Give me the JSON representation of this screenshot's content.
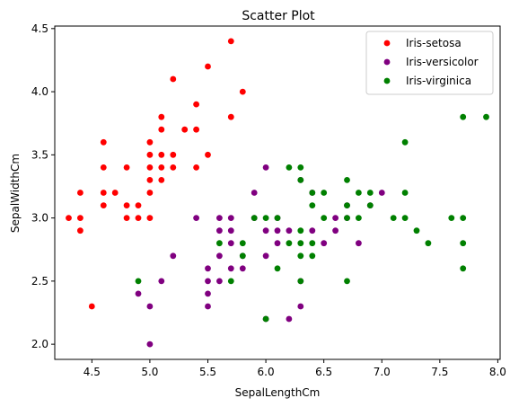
{
  "chart_data": {
    "type": "scatter",
    "title": "Scatter Plot",
    "xlabel": "SepalLengthCm",
    "ylabel": "SepalWidthCm",
    "xlim": [
      4.18,
      8.02
    ],
    "ylim": [
      1.88,
      4.52
    ],
    "xticks": [
      "4.5",
      "5.0",
      "5.5",
      "6.0",
      "6.5",
      "7.0",
      "7.5",
      "8.0"
    ],
    "yticks": [
      "2.0",
      "2.5",
      "3.0",
      "3.5",
      "4.0",
      "4.5"
    ],
    "grid": false,
    "legend_position": "top-right",
    "series": [
      {
        "name": "Iris-setosa",
        "color": "#ff0000",
        "points": [
          [
            4.3,
            3.0
          ],
          [
            4.4,
            3.0
          ],
          [
            4.4,
            2.9
          ],
          [
            4.4,
            3.2
          ],
          [
            4.5,
            2.3
          ],
          [
            4.6,
            3.1
          ],
          [
            4.6,
            3.2
          ],
          [
            4.6,
            3.4
          ],
          [
            4.6,
            3.6
          ],
          [
            4.7,
            3.2
          ],
          [
            4.8,
            3.0
          ],
          [
            4.8,
            3.1
          ],
          [
            4.8,
            3.4
          ],
          [
            4.9,
            3.0
          ],
          [
            4.9,
            3.1
          ],
          [
            5.0,
            3.0
          ],
          [
            5.0,
            3.2
          ],
          [
            5.0,
            3.3
          ],
          [
            5.0,
            3.4
          ],
          [
            5.0,
            3.5
          ],
          [
            5.0,
            3.6
          ],
          [
            5.1,
            3.3
          ],
          [
            5.1,
            3.4
          ],
          [
            5.1,
            3.5
          ],
          [
            5.1,
            3.7
          ],
          [
            5.1,
            3.8
          ],
          [
            5.2,
            3.4
          ],
          [
            5.2,
            3.5
          ],
          [
            5.2,
            4.1
          ],
          [
            5.3,
            3.7
          ],
          [
            5.4,
            3.4
          ],
          [
            5.4,
            3.7
          ],
          [
            5.4,
            3.9
          ],
          [
            5.5,
            3.5
          ],
          [
            5.5,
            4.2
          ],
          [
            5.7,
            3.8
          ],
          [
            5.7,
            4.4
          ],
          [
            5.8,
            4.0
          ]
        ]
      },
      {
        "name": "Iris-versicolor",
        "color": "#800080",
        "points": [
          [
            4.9,
            2.4
          ],
          [
            5.0,
            2.0
          ],
          [
            5.0,
            2.3
          ],
          [
            5.1,
            2.5
          ],
          [
            5.2,
            2.7
          ],
          [
            5.4,
            3.0
          ],
          [
            5.5,
            2.3
          ],
          [
            5.5,
            2.4
          ],
          [
            5.5,
            2.5
          ],
          [
            5.5,
            2.6
          ],
          [
            5.6,
            2.5
          ],
          [
            5.6,
            2.7
          ],
          [
            5.6,
            2.9
          ],
          [
            5.6,
            3.0
          ],
          [
            5.7,
            2.6
          ],
          [
            5.7,
            2.8
          ],
          [
            5.7,
            2.9
          ],
          [
            5.7,
            3.0
          ],
          [
            5.8,
            2.6
          ],
          [
            5.8,
            2.7
          ],
          [
            5.9,
            3.0
          ],
          [
            5.9,
            3.2
          ],
          [
            6.0,
            2.2
          ],
          [
            6.0,
            2.7
          ],
          [
            6.0,
            2.9
          ],
          [
            6.0,
            3.4
          ],
          [
            6.1,
            2.8
          ],
          [
            6.1,
            2.9
          ],
          [
            6.1,
            3.0
          ],
          [
            6.2,
            2.2
          ],
          [
            6.2,
            2.9
          ],
          [
            6.3,
            2.3
          ],
          [
            6.3,
            2.5
          ],
          [
            6.3,
            3.3
          ],
          [
            6.4,
            2.9
          ],
          [
            6.4,
            3.2
          ],
          [
            6.5,
            2.8
          ],
          [
            6.6,
            2.9
          ],
          [
            6.6,
            3.0
          ],
          [
            6.7,
            3.0
          ],
          [
            6.7,
            3.1
          ],
          [
            6.8,
            2.8
          ],
          [
            6.9,
            3.1
          ],
          [
            7.0,
            3.2
          ]
        ]
      },
      {
        "name": "Iris-virginica",
        "color": "#008000",
        "points": [
          [
            4.9,
            2.5
          ],
          [
            5.6,
            2.8
          ],
          [
            5.7,
            2.5
          ],
          [
            5.8,
            2.7
          ],
          [
            5.8,
            2.8
          ],
          [
            5.9,
            3.0
          ],
          [
            6.0,
            2.2
          ],
          [
            6.0,
            3.0
          ],
          [
            6.1,
            2.6
          ],
          [
            6.1,
            3.0
          ],
          [
            6.2,
            2.8
          ],
          [
            6.2,
            3.4
          ],
          [
            6.3,
            2.5
          ],
          [
            6.3,
            2.7
          ],
          [
            6.3,
            2.8
          ],
          [
            6.3,
            2.9
          ],
          [
            6.3,
            3.3
          ],
          [
            6.3,
            3.4
          ],
          [
            6.4,
            2.7
          ],
          [
            6.4,
            2.8
          ],
          [
            6.4,
            3.1
          ],
          [
            6.4,
            3.2
          ],
          [
            6.5,
            3.0
          ],
          [
            6.5,
            3.2
          ],
          [
            6.7,
            2.5
          ],
          [
            6.7,
            3.0
          ],
          [
            6.7,
            3.1
          ],
          [
            6.7,
            3.3
          ],
          [
            6.8,
            3.0
          ],
          [
            6.8,
            3.2
          ],
          [
            6.9,
            3.1
          ],
          [
            6.9,
            3.2
          ],
          [
            7.1,
            3.0
          ],
          [
            7.2,
            3.0
          ],
          [
            7.2,
            3.2
          ],
          [
            7.2,
            3.6
          ],
          [
            7.3,
            2.9
          ],
          [
            7.4,
            2.8
          ],
          [
            7.6,
            3.0
          ],
          [
            7.7,
            2.6
          ],
          [
            7.7,
            2.8
          ],
          [
            7.7,
            3.0
          ],
          [
            7.7,
            3.8
          ],
          [
            7.9,
            3.8
          ]
        ]
      }
    ]
  }
}
